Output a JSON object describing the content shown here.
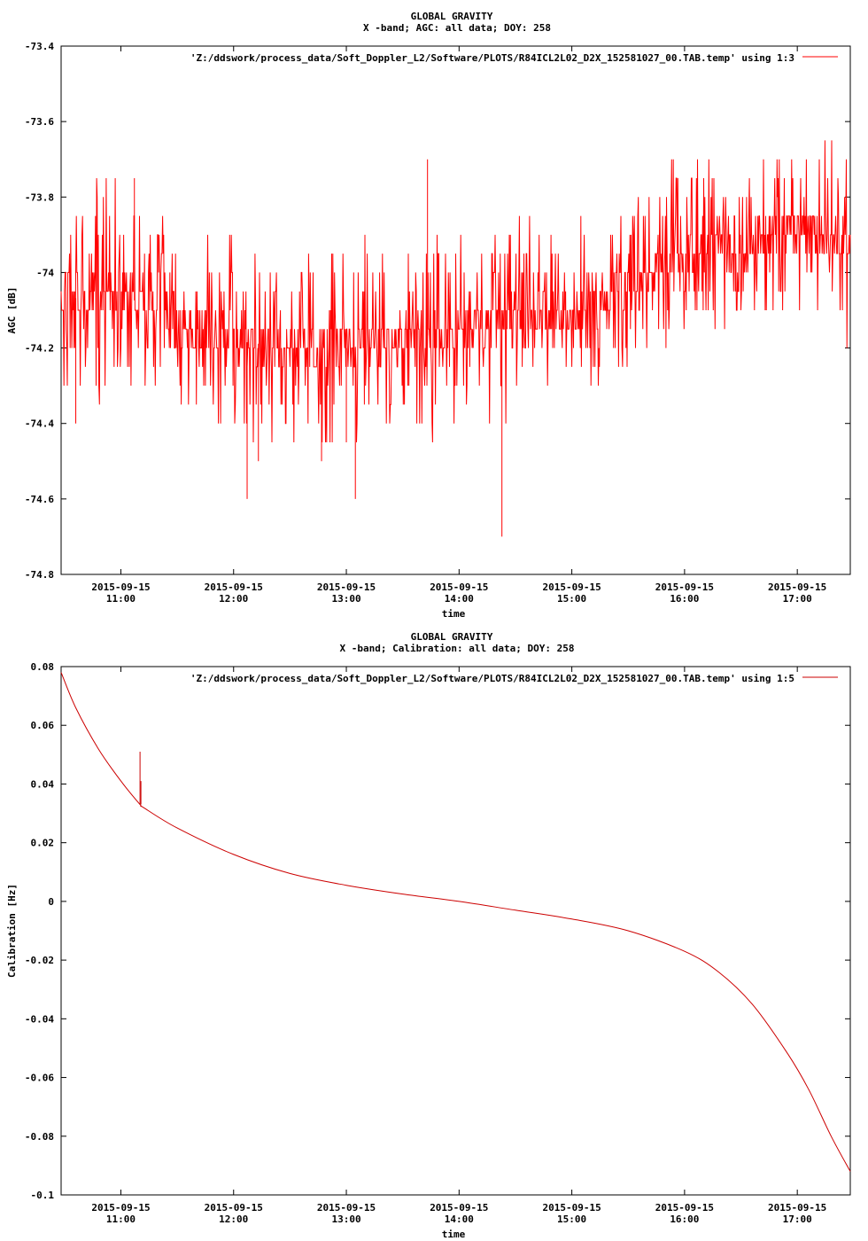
{
  "chart_data": [
    {
      "type": "line",
      "title": "GLOBAL GRAVITY",
      "subtitle": "X -band; AGC: all data; DOY: 258",
      "xlabel": "time",
      "ylabel": "AGC [dB]",
      "ylim": [
        -74.8,
        -73.4
      ],
      "yticks": [
        -73.4,
        -73.6,
        -73.8,
        -74,
        -74.2,
        -74.4,
        -74.6,
        -74.8
      ],
      "ytick_labels": [
        "-73.4",
        "-73.6",
        "-73.8",
        "-74",
        "-74.2",
        "-74.4",
        "-74.6",
        "-74.8"
      ],
      "xlim_hours": [
        10.47,
        17.47
      ],
      "xticks_hours": [
        11,
        12,
        13,
        14,
        15,
        16,
        17
      ],
      "xtick_dates": [
        "2015-09-15",
        "2015-09-15",
        "2015-09-15",
        "2015-09-15",
        "2015-09-15",
        "2015-09-15",
        "2015-09-15"
      ],
      "xtick_times": [
        "11:00",
        "12:00",
        "13:00",
        "14:00",
        "15:00",
        "16:00",
        "17:00"
      ],
      "legend_position": "top-right",
      "series": [
        {
          "name": "'Z:/ddswork/process_data/Soft_Doppler_L2/Software/PLOTS/R84ICL2L02_D2X_152581027_00.TAB.temp' using 1:3",
          "color": "#ff0000",
          "quantization": 0.05,
          "envelope": [
            {
              "t": 10.47,
              "lo": -74.3,
              "hi": -73.75,
              "mid": -74.08
            },
            {
              "t": 10.8,
              "lo": -74.4,
              "hi": -73.7,
              "mid": -74.05
            },
            {
              "t": 11.2,
              "lo": -74.3,
              "hi": -73.75,
              "mid": -74.08
            },
            {
              "t": 11.5,
              "lo": -74.4,
              "hi": -73.8,
              "mid": -74.15
            },
            {
              "t": 12.0,
              "lo": -74.45,
              "hi": -73.9,
              "mid": -74.18
            },
            {
              "t": 12.5,
              "lo": -74.5,
              "hi": -73.9,
              "mid": -74.2
            },
            {
              "t": 13.0,
              "lo": -74.5,
              "hi": -73.9,
              "mid": -74.2
            },
            {
              "t": 13.5,
              "lo": -74.45,
              "hi": -73.9,
              "mid": -74.18
            },
            {
              "t": 14.0,
              "lo": -74.45,
              "hi": -73.85,
              "mid": -74.15
            },
            {
              "t": 14.5,
              "lo": -74.4,
              "hi": -73.8,
              "mid": -74.12
            },
            {
              "t": 15.0,
              "lo": -74.3,
              "hi": -73.85,
              "mid": -74.1
            },
            {
              "t": 15.5,
              "lo": -74.3,
              "hi": -73.8,
              "mid": -74.05
            },
            {
              "t": 16.0,
              "lo": -74.2,
              "hi": -73.65,
              "mid": -73.95
            },
            {
              "t": 16.5,
              "lo": -74.15,
              "hi": -73.65,
              "mid": -73.92
            },
            {
              "t": 17.0,
              "lo": -74.1,
              "hi": -73.6,
              "mid": -73.88
            },
            {
              "t": 17.47,
              "lo": -74.2,
              "hi": -73.65,
              "mid": -73.92
            }
          ],
          "spikes": [
            {
              "t": 11.12,
              "y": -73.75
            },
            {
              "t": 12.12,
              "y": -74.6
            },
            {
              "t": 12.22,
              "y": -74.5
            },
            {
              "t": 13.08,
              "y": -74.6
            },
            {
              "t": 13.0,
              "y": -74.45
            },
            {
              "t": 14.38,
              "y": -74.7
            },
            {
              "t": 13.72,
              "y": -73.7
            },
            {
              "t": 12.78,
              "y": -74.5
            },
            {
              "t": 10.6,
              "y": -74.4
            }
          ]
        }
      ]
    },
    {
      "type": "line",
      "title": "GLOBAL GRAVITY",
      "subtitle": "X -band; Calibration: all data; DOY: 258",
      "xlabel": "time",
      "ylabel": "Calibration [Hz]",
      "ylim": [
        -0.1,
        0.08
      ],
      "yticks": [
        0.08,
        0.06,
        0.04,
        0.02,
        0,
        -0.02,
        -0.04,
        -0.06,
        -0.08,
        -0.1
      ],
      "ytick_labels": [
        "0.08",
        "0.06",
        "0.04",
        "0.02",
        "0",
        "-0.02",
        "-0.04",
        "-0.06",
        "-0.08",
        "-0.1"
      ],
      "xlim_hours": [
        10.47,
        17.47
      ],
      "xticks_hours": [
        11,
        12,
        13,
        14,
        15,
        16,
        17
      ],
      "xtick_dates": [
        "2015-09-15",
        "2015-09-15",
        "2015-09-15",
        "2015-09-15",
        "2015-09-15",
        "2015-09-15",
        "2015-09-15"
      ],
      "xtick_times": [
        "11:00",
        "12:00",
        "13:00",
        "14:00",
        "15:00",
        "16:00",
        "17:00"
      ],
      "legend_position": "top-right",
      "series": [
        {
          "name": "'Z:/ddswork/process_data/Soft_Doppler_L2/Software/PLOTS/R84ICL2L02_D2X_152581027_00.TAB.temp' using 1:5",
          "color": "#cc0000",
          "x": [
            10.47,
            10.6,
            10.8,
            11.0,
            11.17,
            11.2,
            11.5,
            12.0,
            12.5,
            13.0,
            13.5,
            14.0,
            14.5,
            15.0,
            15.5,
            16.0,
            16.3,
            16.6,
            16.9,
            17.1,
            17.3,
            17.47
          ],
          "y": [
            0.078,
            0.066,
            0.052,
            0.041,
            0.033,
            0.032,
            0.025,
            0.016,
            0.0095,
            0.0055,
            0.0025,
            0.0,
            -0.003,
            -0.006,
            -0.01,
            -0.017,
            -0.024,
            -0.035,
            -0.051,
            -0.064,
            -0.08,
            -0.092
          ],
          "spike": {
            "t": 11.17,
            "from": 0.033,
            "to": 0.051
          }
        }
      ]
    }
  ]
}
